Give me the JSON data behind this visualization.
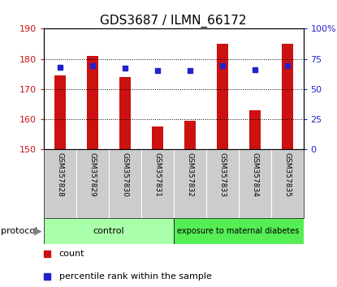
{
  "title": "GDS3687 / ILMN_66172",
  "samples": [
    "GSM357828",
    "GSM357829",
    "GSM357830",
    "GSM357831",
    "GSM357832",
    "GSM357833",
    "GSM357834",
    "GSM357835"
  ],
  "count_values": [
    174.5,
    181.0,
    174.0,
    157.5,
    159.5,
    185.0,
    163.0,
    185.0
  ],
  "percentile_values": [
    68,
    69,
    67,
    65,
    65,
    69,
    66,
    69
  ],
  "ylim_left": [
    150,
    190
  ],
  "ylim_right": [
    0,
    100
  ],
  "yticks_left": [
    150,
    160,
    170,
    180,
    190
  ],
  "yticks_right": [
    0,
    25,
    50,
    75,
    100
  ],
  "bar_color": "#cc1111",
  "dot_color": "#2222cc",
  "n_control": 4,
  "control_label": "control",
  "diabetes_label": "exposure to maternal diabetes",
  "protocol_label": "protocol",
  "legend_count": "count",
  "legend_percentile": "percentile rank within the sample",
  "control_color": "#aaffaa",
  "diabetes_color": "#55ee55",
  "xtick_bg_color": "#cccccc",
  "title_fontsize": 11,
  "axis_color_left": "#cc1111",
  "axis_color_right": "#2222cc",
  "bar_width": 0.35
}
